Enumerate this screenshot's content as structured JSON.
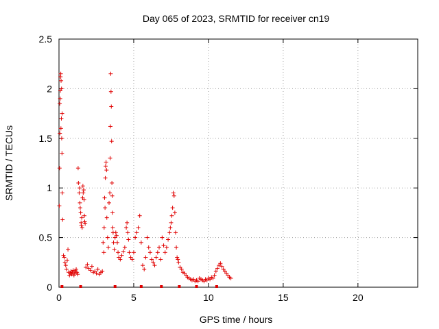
{
  "chart_data": {
    "type": "scatter",
    "title": "Day 065 of 2023, SRMTID for receiver cn19",
    "xlabel": "GPS time / hours",
    "ylabel": "SRMTID / TECUs",
    "xlim": [
      0,
      24
    ],
    "ylim": [
      0,
      2.5
    ],
    "xticks": [
      0,
      5,
      10,
      15,
      20
    ],
    "yticks": [
      0,
      0.5,
      1,
      1.5,
      2,
      2.5
    ],
    "xtick_labels": [
      "0",
      "5",
      "10",
      "15",
      "20"
    ],
    "ytick_labels": [
      "0",
      "0.5",
      "1",
      "1.5",
      "2",
      "2.5"
    ],
    "grid": true,
    "marker": "+",
    "color": "#e00000",
    "series": [
      {
        "name": "SRMTID",
        "x": [
          0.02,
          0.04,
          0.06,
          0.08,
          0.1,
          0.12,
          0.14,
          0.16,
          0.18,
          0.2,
          0.22,
          0.24,
          0.05,
          0.09,
          0.13,
          0.17,
          0.21,
          0.3,
          0.35,
          0.4,
          0.45,
          0.5,
          0.55,
          0.6,
          0.65,
          0.7,
          0.75,
          0.8,
          0.85,
          0.9,
          0.95,
          1.0,
          1.05,
          1.1,
          1.15,
          1.2,
          1.25,
          1.28,
          1.3,
          1.35,
          1.38,
          1.4,
          1.42,
          1.45,
          1.48,
          1.5,
          1.52,
          1.55,
          1.58,
          1.6,
          1.62,
          1.65,
          1.68,
          1.7,
          1.72,
          1.75,
          1.8,
          1.9,
          2.0,
          2.1,
          2.2,
          2.3,
          2.4,
          2.5,
          2.6,
          2.7,
          2.8,
          2.9,
          2.95,
          3.0,
          3.02,
          3.05,
          3.08,
          3.1,
          3.12,
          3.15,
          3.18,
          3.2,
          3.25,
          3.3,
          3.35,
          3.4,
          3.42,
          3.44,
          3.46,
          3.48,
          3.5,
          3.52,
          3.54,
          3.56,
          3.58,
          3.6,
          3.62,
          3.65,
          3.7,
          3.75,
          3.8,
          3.85,
          3.9,
          3.95,
          4.0,
          4.1,
          4.2,
          4.3,
          4.4,
          4.5,
          4.55,
          4.6,
          4.65,
          4.7,
          4.8,
          4.9,
          5.0,
          5.1,
          5.2,
          5.3,
          5.4,
          5.5,
          5.6,
          5.7,
          5.8,
          5.9,
          6.0,
          6.1,
          6.2,
          6.3,
          6.4,
          6.5,
          6.6,
          6.7,
          6.8,
          6.9,
          7.0,
          7.1,
          7.2,
          7.3,
          7.4,
          7.45,
          7.5,
          7.55,
          7.6,
          7.65,
          7.7,
          7.75,
          7.8,
          7.85,
          7.9,
          7.95,
          8.0,
          8.1,
          8.2,
          8.3,
          8.4,
          8.5,
          8.6,
          8.7,
          8.8,
          8.9,
          9.0,
          9.1,
          9.2,
          9.3,
          9.4,
          9.5,
          9.6,
          9.7,
          9.8,
          9.9,
          10.0,
          10.1,
          10.2,
          10.3,
          10.4,
          10.5,
          10.6,
          10.7,
          10.8,
          10.9,
          11.0,
          11.1,
          11.2,
          11.3,
          11.4,
          11.5
        ],
        "y": [
          0.82,
          1.2,
          1.55,
          1.9,
          2.12,
          2.15,
          2.08,
          1.7,
          1.5,
          1.35,
          0.95,
          0.68,
          1.85,
          1.98,
          1.6,
          2.0,
          1.75,
          0.32,
          0.3,
          0.25,
          0.22,
          0.18,
          0.27,
          0.38,
          0.15,
          0.12,
          0.14,
          0.16,
          0.13,
          0.15,
          0.17,
          0.12,
          0.14,
          0.16,
          0.18,
          0.15,
          0.13,
          1.2,
          1.05,
          0.95,
          1.0,
          0.85,
          0.8,
          0.75,
          0.65,
          0.62,
          0.7,
          0.6,
          0.9,
          1.02,
          0.95,
          0.98,
          0.88,
          0.72,
          0.66,
          0.64,
          0.2,
          0.23,
          0.19,
          0.17,
          0.21,
          0.15,
          0.16,
          0.14,
          0.18,
          0.13,
          0.15,
          0.16,
          0.45,
          0.35,
          0.6,
          0.9,
          0.8,
          1.1,
          1.22,
          1.26,
          1.18,
          0.7,
          0.5,
          0.4,
          0.85,
          0.95,
          1.3,
          1.62,
          2.15,
          1.97,
          1.82,
          1.47,
          1.05,
          0.92,
          0.75,
          0.6,
          0.55,
          0.45,
          0.38,
          0.5,
          0.55,
          0.52,
          0.45,
          0.35,
          0.3,
          0.28,
          0.32,
          0.36,
          0.4,
          0.6,
          0.65,
          0.55,
          0.48,
          0.35,
          0.3,
          0.28,
          0.35,
          0.5,
          0.55,
          0.6,
          0.72,
          0.45,
          0.22,
          0.18,
          0.3,
          0.5,
          0.4,
          0.35,
          0.28,
          0.25,
          0.22,
          0.3,
          0.35,
          0.4,
          0.28,
          0.5,
          0.42,
          0.35,
          0.4,
          0.48,
          0.55,
          0.6,
          0.65,
          0.72,
          0.8,
          0.95,
          0.92,
          0.75,
          0.55,
          0.4,
          0.3,
          0.28,
          0.25,
          0.2,
          0.18,
          0.15,
          0.14,
          0.12,
          0.1,
          0.09,
          0.08,
          0.07,
          0.08,
          0.06,
          0.07,
          0.06,
          0.09,
          0.08,
          0.07,
          0.06,
          0.08,
          0.07,
          0.09,
          0.08,
          0.1,
          0.09,
          0.12,
          0.16,
          0.19,
          0.22,
          0.24,
          0.21,
          0.18,
          0.16,
          0.14,
          0.12,
          0.1,
          0.09
        ]
      }
    ],
    "gap_markers_x": [
      0.2,
      1.45,
      3.75,
      5.5,
      6.85,
      8.05,
      9.2,
      10.55
    ]
  }
}
